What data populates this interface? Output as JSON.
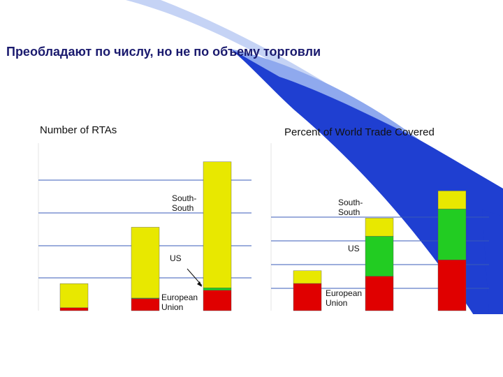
{
  "slide": {
    "title": "Преобладают по числу, но не по объему торговли"
  },
  "colors": {
    "background": "#ffffff",
    "swoosh_dark": "#1f3fd1",
    "swoosh_light": "#8fa9ee",
    "gridline": "#3a5bb8",
    "european_union": "#e00000",
    "us": "#22cc22",
    "south_south": "#e8e800",
    "title": "#1a1a6e"
  },
  "chart_data": [
    {
      "type": "bar",
      "stacked": true,
      "title": "Number of RTAs",
      "categories": [
        "",
        "",
        ""
      ],
      "ylim": [
        0,
        250
      ],
      "grid": true,
      "series": [
        {
          "name": "European Union",
          "color": "#e00000",
          "values": [
            5,
            20,
            34
          ]
        },
        {
          "name": "US",
          "color": "#22cc22",
          "values": [
            0,
            1,
            4
          ]
        },
        {
          "name": "South-South",
          "color": "#e8e800",
          "values": [
            40,
            118,
            210
          ]
        }
      ],
      "annotations": [
        {
          "text": "South-\nSouth"
        },
        {
          "text": "US"
        },
        {
          "text": "European\nUnion"
        }
      ]
    },
    {
      "type": "bar",
      "stacked": true,
      "title": "Percent of World Trade Covered",
      "categories": [
        "",
        "",
        ""
      ],
      "ylim": [
        0,
        80
      ],
      "grid": true,
      "series": [
        {
          "name": "European Union",
          "color": "#e00000",
          "values": [
            15,
            19,
            28
          ]
        },
        {
          "name": "US",
          "color": "#22cc22",
          "values": [
            0,
            22,
            28
          ]
        },
        {
          "name": "South-South",
          "color": "#e8e800",
          "values": [
            7,
            10,
            10
          ]
        }
      ],
      "annotations": [
        {
          "text": "South-\nSouth"
        },
        {
          "text": "US"
        },
        {
          "text": "European\nUnion"
        }
      ]
    }
  ]
}
